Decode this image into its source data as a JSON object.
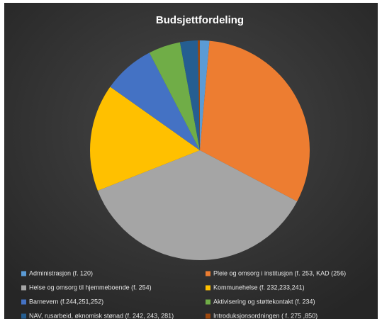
{
  "chart_data": {
    "type": "pie",
    "title": "Budsjettfordeling",
    "categories": [
      "Administrasjon (f. 120)",
      "Pleie og omsorg i institusjon (f. 253, KAD (256)",
      "Helse og omsorg til hjemmeboende (f. 254)",
      "Kommunehelse (f. 232,233,241)",
      "Barnevern (f.244,251,252)",
      "Aktivisering og støttekontakt (f. 234)",
      "NAV, rusarbeid, øknomisk stønad (f. 242, 243, 281)",
      "Introduksjonsordningen ( f. 275 ,850)"
    ],
    "values": [
      1.4,
      31.3,
      36.3,
      15.8,
      7.6,
      4.7,
      2.6,
      0.3
    ],
    "colors": [
      "#5b9bd5",
      "#ed7d31",
      "#a5a5a5",
      "#ffc000",
      "#4472c4",
      "#70ad47",
      "#255e91",
      "#9e480e"
    ]
  }
}
